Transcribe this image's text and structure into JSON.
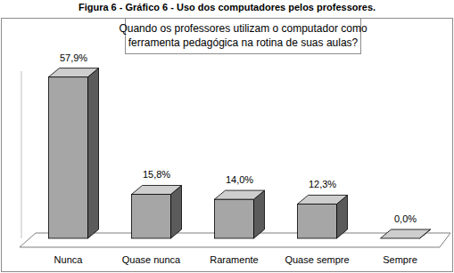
{
  "chart_data": {
    "type": "bar",
    "subtitle": "Figura 6 - Gráfico 6 - Uso dos computadores pelos professores.",
    "title": "Quando os professores utilizam o computador como ferramenta pedagógica na rotina de suas aulas?",
    "categories": [
      "Nunca",
      "Quase nunca",
      "Raramente",
      "Quase sempre",
      "Sempre"
    ],
    "values": [
      57.9,
      15.8,
      14.0,
      12.3,
      0.0
    ],
    "value_labels": [
      "57,9%",
      "15,8%",
      "14,0%",
      "12,3%",
      "0,0%"
    ],
    "color": "#a6a6a6",
    "ylim": [
      0,
      60
    ],
    "data_labels": true,
    "tick_labels": "x",
    "grid": false
  }
}
